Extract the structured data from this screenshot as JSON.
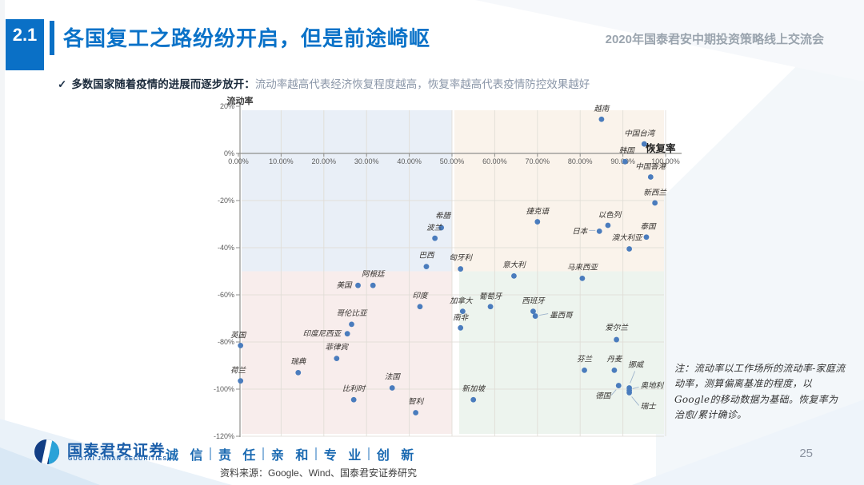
{
  "slide": {
    "section_number": "2.1",
    "title": "各国复工之路纷纷开启，但是前途崎岖",
    "header_right": "2020年国泰君安中期投资策略线上交流会",
    "bullet": {
      "check": "✓",
      "bold": "多数国家随着疫情的进展而逐步放开：",
      "rest": "流动率越高代表经济恢复程度越高，恢复率越高代表疫情防控效果越好"
    },
    "note": "注：流动率以工作场所的流动率-家庭流动率，测算偏离基准的程度，以Google的移动数据为基础。恢复率为治愈/累计确诊。",
    "footer": {
      "logo_cn": "国泰君安证券",
      "logo_en": "GUOTAI JUNAN SECURITIES",
      "slogan_words": [
        "诚 信",
        "责 任",
        "亲 和",
        "专 业",
        "创 新"
      ],
      "source": "资料来源：Google、Wind、国泰君安证券研究",
      "page_number": "25"
    },
    "colors": {
      "accent_blue": "#0a70c6",
      "header_gray": "#9aa4ae",
      "footer_blue": "#1b6ab2"
    }
  },
  "chart_data": {
    "type": "scatter",
    "xlabel": "恢复率",
    "ylabel": "流动率",
    "x_unit": "%",
    "y_unit": "%",
    "xlim": [
      0,
      100
    ],
    "ylim": [
      -120,
      20
    ],
    "x_ticks": [
      "0.00%",
      "10.00%",
      "20.00%",
      "30.00%",
      "40.00%",
      "50.00%",
      "60.00%",
      "70.00%",
      "80.00%",
      "90.00%",
      "100.00%"
    ],
    "y_ticks": [
      "20%",
      "0%",
      "-20%",
      "-40%",
      "-60%",
      "-80%",
      "-100%",
      "-120%"
    ],
    "grid": true,
    "quadrant_split": {
      "x": 50,
      "y": -50
    },
    "quadrant_colors": {
      "top_left": "#e9eff7",
      "top_right": "#faf3eb",
      "bottom_left": "#f8edec",
      "bottom_right": "#edf4ee"
    },
    "dot_color": "#4a7cbd",
    "grid_color": "#e0ddd6",
    "axis_color": "#8f8f8c",
    "connector_color": "#9fb4cc",
    "points": [
      {
        "name": "越南",
        "x": 85,
        "y": 14.5,
        "lp": [
          0,
          -10,
          "m"
        ]
      },
      {
        "name": "中国台湾",
        "x": 95,
        "y": 4,
        "lp": [
          -6,
          -10,
          "m"
        ]
      },
      {
        "name": "韩国",
        "x": 90.5,
        "y": -3.5,
        "lp": [
          2,
          -11,
          "m"
        ]
      },
      {
        "name": "中国香港",
        "x": 96.5,
        "y": -10,
        "lp": [
          0,
          -10,
          "m"
        ]
      },
      {
        "name": "新西兰",
        "x": 97.5,
        "y": -21,
        "lp": [
          0,
          -10,
          "m"
        ]
      },
      {
        "name": "捷克语",
        "x": 70,
        "y": -29,
        "lp": [
          0,
          -10,
          "m"
        ]
      },
      {
        "name": "以色列",
        "x": 86.5,
        "y": -30.5,
        "lp": [
          2,
          -10,
          "m"
        ]
      },
      {
        "name": "日本",
        "x": 84.5,
        "y": -33,
        "lp": [
          -15,
          3,
          "e"
        ],
        "conn": [
          -13,
          -1,
          -5,
          -1
        ]
      },
      {
        "name": "泰国",
        "x": 95.5,
        "y": -35.5,
        "lp": [
          2,
          -10,
          "m"
        ]
      },
      {
        "name": "澳大利亚",
        "x": 91.5,
        "y": -40.5,
        "lp": [
          -3,
          -11,
          "m"
        ]
      },
      {
        "name": "希腊",
        "x": 47.5,
        "y": -31.5,
        "lp": [
          2,
          -12,
          "m"
        ]
      },
      {
        "name": "波兰",
        "x": 46,
        "y": -36,
        "lp": [
          -1,
          -10,
          "m"
        ]
      },
      {
        "name": "巴西",
        "x": 44,
        "y": -48,
        "lp": [
          0,
          -11,
          "m"
        ]
      },
      {
        "name": "匈牙利",
        "x": 52,
        "y": -49,
        "lp": [
          0,
          -11,
          "m"
        ]
      },
      {
        "name": "意大利",
        "x": 64.5,
        "y": -52,
        "lp": [
          0,
          -11,
          "m"
        ]
      },
      {
        "name": "马来西亚",
        "x": 80.5,
        "y": -53,
        "lp": [
          0,
          -11,
          "m"
        ]
      },
      {
        "name": "美国",
        "x": 28,
        "y": -56,
        "lp": [
          -8,
          3,
          "e"
        ]
      },
      {
        "name": "阿根廷",
        "x": 31.5,
        "y": -56,
        "lp": [
          0,
          -11,
          "m"
        ]
      },
      {
        "name": "印度",
        "x": 42.5,
        "y": -65,
        "lp": [
          0,
          -11,
          "m"
        ]
      },
      {
        "name": "葡萄牙",
        "x": 59,
        "y": -65,
        "lp": [
          0,
          -10,
          "m"
        ]
      },
      {
        "name": "加拿大",
        "x": 52.5,
        "y": -67,
        "lp": [
          -2,
          -10,
          "m"
        ]
      },
      {
        "name": "西班牙",
        "x": 69,
        "y": -67,
        "lp": [
          0,
          -10,
          "m"
        ]
      },
      {
        "name": "墨西哥",
        "x": 69.5,
        "y": -69,
        "lp": [
          18,
          2,
          "s"
        ],
        "conn": [
          5,
          -1,
          16,
          -3
        ]
      },
      {
        "name": "哥伦比亚",
        "x": 26.5,
        "y": -72.5,
        "lp": [
          0,
          -11,
          "m"
        ]
      },
      {
        "name": "南非",
        "x": 52,
        "y": -74,
        "lp": [
          0,
          -10,
          "m"
        ]
      },
      {
        "name": "印度尼西亚",
        "x": 25.5,
        "y": -76.5,
        "lp": [
          -8,
          3,
          "e"
        ]
      },
      {
        "name": "英国",
        "x": 0.5,
        "y": -81.5,
        "lp": [
          -3,
          -10,
          "m"
        ]
      },
      {
        "name": "爱尔兰",
        "x": 88.5,
        "y": -79,
        "lp": [
          0,
          -12,
          "m"
        ]
      },
      {
        "name": "菲律宾",
        "x": 23,
        "y": -87,
        "lp": [
          0,
          -11,
          "m"
        ]
      },
      {
        "name": "瑞典",
        "x": 14,
        "y": -93,
        "lp": [
          0,
          -11,
          "m"
        ]
      },
      {
        "name": "荷兰",
        "x": 0.5,
        "y": -96.5,
        "lp": [
          -3,
          -10,
          "m"
        ]
      },
      {
        "name": "芬兰",
        "x": 81,
        "y": -92,
        "lp": [
          0,
          -11,
          "m"
        ]
      },
      {
        "name": "丹麦",
        "x": 88,
        "y": -92,
        "lp": [
          0,
          -11,
          "m"
        ]
      },
      {
        "name": "挪威",
        "x": 91.5,
        "y": -99.5,
        "lp": [
          8,
          -26,
          "m"
        ],
        "conn": [
          7,
          -21,
          1,
          -6
        ]
      },
      {
        "name": "法国",
        "x": 36,
        "y": -99.5,
        "lp": [
          0,
          -11,
          "m"
        ]
      },
      {
        "name": "德国",
        "x": 89,
        "y": -98.5,
        "lp": [
          -10,
          16,
          "e"
        ],
        "conn": [
          -9,
          12,
          -3,
          5
        ]
      },
      {
        "name": "奥地利",
        "x": 91.5,
        "y": -100.5,
        "lp": [
          14,
          -3,
          "s"
        ],
        "conn": [
          4,
          -2,
          12,
          -4
        ]
      },
      {
        "name": "瑞士",
        "x": 91.5,
        "y": -101.5,
        "lp": [
          14,
          20,
          "s"
        ],
        "conn": [
          3,
          5,
          12,
          16
        ]
      },
      {
        "name": "比利时",
        "x": 27,
        "y": -104.5,
        "lp": [
          0,
          -11,
          "m"
        ]
      },
      {
        "name": "新加坡",
        "x": 55,
        "y": -104.5,
        "lp": [
          0,
          -11,
          "m"
        ]
      },
      {
        "name": "智利",
        "x": 41.5,
        "y": -110,
        "lp": [
          0,
          -11,
          "m"
        ]
      }
    ]
  }
}
